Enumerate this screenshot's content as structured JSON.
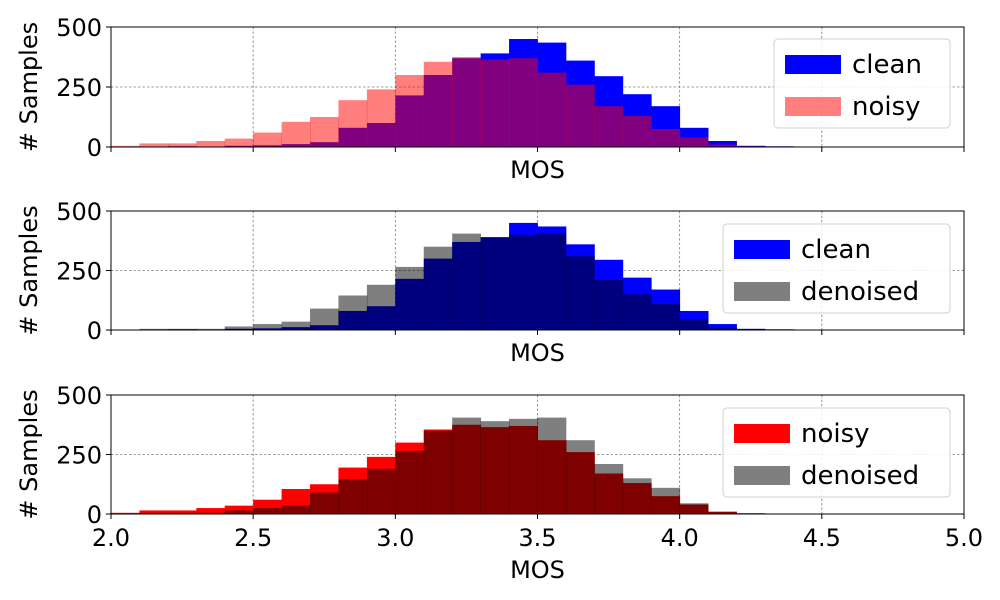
{
  "chart_data": [
    {
      "type": "bar",
      "xlabel": "MOS",
      "ylabel": "# Samples",
      "xlim": [
        2.0,
        5.0
      ],
      "ylim": [
        0,
        500
      ],
      "bin_width": 0.1,
      "bin_starts": [
        2.0,
        2.1,
        2.2,
        2.3,
        2.4,
        2.5,
        2.6,
        2.7,
        2.8,
        2.9,
        3.0,
        3.1,
        3.2,
        3.3,
        3.4,
        3.5,
        3.6,
        3.7,
        3.8,
        3.9,
        4.0,
        4.1,
        4.2,
        4.3,
        4.4,
        4.5,
        4.6,
        4.7,
        4.8,
        4.9
      ],
      "legend_position": "top-right",
      "grid": true,
      "series": [
        {
          "name": "clean",
          "color": "#0000ff",
          "opacity": 1.0,
          "values": [
            0,
            2,
            3,
            2,
            5,
            7,
            12,
            20,
            80,
            100,
            215,
            300,
            370,
            390,
            450,
            435,
            360,
            295,
            220,
            170,
            80,
            25,
            5,
            3,
            2,
            0,
            0,
            0,
            0,
            0
          ]
        },
        {
          "name": "noisy",
          "color": "#ff0000",
          "opacity": 0.5,
          "values": [
            5,
            15,
            15,
            25,
            35,
            60,
            105,
            125,
            195,
            240,
            300,
            355,
            375,
            365,
            370,
            310,
            260,
            170,
            130,
            75,
            40,
            10,
            3,
            0,
            0,
            0,
            0,
            0,
            0,
            0
          ]
        }
      ],
      "y_ticks": [
        "0",
        "250",
        "500"
      ]
    },
    {
      "type": "bar",
      "xlabel": "MOS",
      "ylabel": "# Samples",
      "xlim": [
        2.0,
        5.0
      ],
      "ylim": [
        0,
        500
      ],
      "bin_width": 0.1,
      "bin_starts": [
        2.0,
        2.1,
        2.2,
        2.3,
        2.4,
        2.5,
        2.6,
        2.7,
        2.8,
        2.9,
        3.0,
        3.1,
        3.2,
        3.3,
        3.4,
        3.5,
        3.6,
        3.7,
        3.8,
        3.9,
        4.0,
        4.1,
        4.2,
        4.3,
        4.4,
        4.5,
        4.6,
        4.7,
        4.8,
        4.9
      ],
      "legend_position": "top-right",
      "grid": true,
      "series": [
        {
          "name": "clean",
          "color": "#0000ff",
          "opacity": 1.0,
          "values": [
            0,
            2,
            3,
            2,
            5,
            7,
            12,
            20,
            80,
            100,
            215,
            300,
            370,
            390,
            450,
            435,
            360,
            295,
            220,
            170,
            80,
            25,
            5,
            3,
            2,
            0,
            0,
            0,
            0,
            0
          ]
        },
        {
          "name": "denoised",
          "color": "#000000",
          "opacity": 0.5,
          "values": [
            0,
            5,
            5,
            5,
            15,
            25,
            35,
            90,
            145,
            190,
            265,
            350,
            405,
            390,
            400,
            405,
            310,
            210,
            150,
            110,
            45,
            8,
            3,
            0,
            0,
            0,
            0,
            0,
            0,
            0
          ]
        }
      ],
      "y_ticks": [
        "0",
        "250",
        "500"
      ]
    },
    {
      "type": "bar",
      "xlabel": "MOS",
      "ylabel": "# Samples",
      "xlim": [
        2.0,
        5.0
      ],
      "ylim": [
        0,
        500
      ],
      "bin_width": 0.1,
      "bin_starts": [
        2.0,
        2.1,
        2.2,
        2.3,
        2.4,
        2.5,
        2.6,
        2.7,
        2.8,
        2.9,
        3.0,
        3.1,
        3.2,
        3.3,
        3.4,
        3.5,
        3.6,
        3.7,
        3.8,
        3.9,
        4.0,
        4.1,
        4.2,
        4.3,
        4.4,
        4.5,
        4.6,
        4.7,
        4.8,
        4.9
      ],
      "legend_position": "top-right",
      "grid": true,
      "series": [
        {
          "name": "noisy",
          "color": "#ff0000",
          "opacity": 1.0,
          "values": [
            5,
            15,
            15,
            25,
            35,
            60,
            105,
            125,
            195,
            240,
            300,
            355,
            375,
            365,
            370,
            310,
            260,
            170,
            130,
            75,
            40,
            10,
            3,
            0,
            0,
            0,
            0,
            0,
            0,
            0
          ]
        },
        {
          "name": "denoised",
          "color": "#000000",
          "opacity": 0.5,
          "values": [
            0,
            5,
            5,
            5,
            15,
            25,
            35,
            90,
            145,
            190,
            265,
            350,
            405,
            390,
            400,
            405,
            310,
            210,
            150,
            110,
            45,
            8,
            3,
            0,
            0,
            0,
            0,
            0,
            0,
            0
          ]
        }
      ],
      "y_ticks": [
        "0",
        "250",
        "500"
      ],
      "x_ticks": [
        "2.0",
        "2.5",
        "3.0",
        "3.5",
        "4.0",
        "4.5",
        "5.0"
      ]
    }
  ]
}
